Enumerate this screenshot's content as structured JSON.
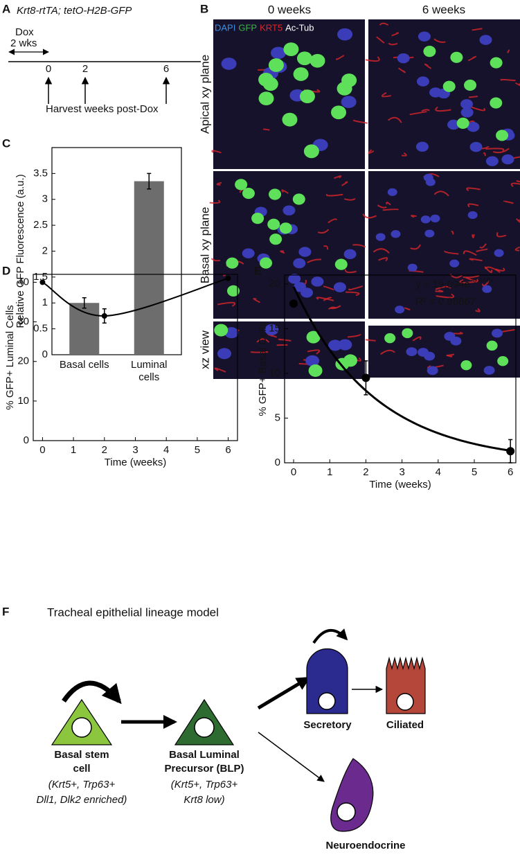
{
  "panel_a": {
    "panel_label": "A",
    "genotype": "Krt8-rtTA; tetO-H2B-GFP",
    "dox_label": "Dox",
    "dox_duration": "2 wks",
    "timepoints": [
      "0",
      "2",
      "6"
    ],
    "harvest_label": "Harvest weeks post-Dox"
  },
  "panel_b": {
    "panel_label": "B",
    "columns": [
      "0 weeks",
      "6 weeks"
    ],
    "rows": [
      "Apical xy plane",
      "Basal xy plane",
      "xz view"
    ],
    "stain_legend": [
      {
        "name": "DAPI",
        "color": "#3a8ee0"
      },
      {
        "name": "GFP",
        "color": "#3bb34a"
      },
      {
        "name": "KRT5",
        "color": "#e0262a"
      },
      {
        "name": "Ac-Tub",
        "color": "#ffffff"
      }
    ]
  },
  "chart_data": [
    {
      "panel_label": "C",
      "type": "bar",
      "y_label": "Relative GFP Fluorescence (a.u.)",
      "categories": [
        "Basal cells",
        "Luminal cells"
      ],
      "values": [
        1,
        3.35
      ],
      "errors": [
        0.1,
        0.15
      ],
      "color": "#6d6d6d",
      "ylim": [
        0,
        4
      ],
      "yticks": [
        0,
        0.5,
        1,
        1.5,
        2,
        2.5,
        3,
        3.5
      ]
    },
    {
      "panel_label": "D",
      "type": "line",
      "x_label": "Time (weeks)",
      "y_label": "% GFP+ Luminal Cells",
      "x": [
        0,
        2,
        6
      ],
      "values": [
        40,
        31.5,
        41
      ],
      "errors": [
        null,
        1.8,
        null
      ],
      "color": "#000000",
      "smooth": true,
      "xlim": [
        -0.3,
        6.3
      ],
      "ylim": [
        0,
        42
      ],
      "xticks": [
        0,
        1,
        2,
        3,
        4,
        5,
        6
      ],
      "yticks": [
        0,
        10,
        20,
        30,
        40
      ]
    },
    {
      "panel_label": "E",
      "type": "scatter",
      "x_label": "Time (weeks)",
      "y_label": "% GFP+ Basal Cells",
      "x": [
        0,
        2,
        6
      ],
      "values": [
        17.8,
        9.5,
        1.3
      ],
      "errors": [
        null,
        1.9,
        1.3
      ],
      "color": "#000000",
      "fit": {
        "a": 19.694,
        "b": -0.446
      },
      "fit_label": {
        "base": "y = 19.694e",
        "exponent": "-0.446x"
      },
      "r_squared_label": "R² = 0.98867",
      "xlim": [
        -0.25,
        6.15
      ],
      "ylim": [
        0,
        21
      ],
      "xticks": [
        0,
        1,
        2,
        3,
        4,
        5,
        6
      ],
      "yticks": [
        0,
        5,
        10,
        15,
        20
      ]
    }
  ],
  "panel_f": {
    "panel_label": "F",
    "title": "Tracheal epithelial lineage model",
    "nodes": [
      {
        "label": [
          "Basal stem",
          "cell"
        ],
        "details": [
          "(Krt5+, Trp63+",
          "Dll1, Dlk2 enriched)"
        ],
        "color": "#8cc63f"
      },
      {
        "label": [
          "Basal Luminal",
          "Precursor (BLP)"
        ],
        "details": [
          "(Krt5+, Trp63+",
          "Krt8 low)"
        ],
        "color": "#2e6b30"
      },
      {
        "label": [
          "Secretory"
        ],
        "color": "#2b2a8f"
      },
      {
        "label": [
          "Ciliated"
        ],
        "color": "#b5473a"
      },
      {
        "label": [
          "Neuroendocrine"
        ],
        "color": "#6a2a8e"
      }
    ]
  }
}
